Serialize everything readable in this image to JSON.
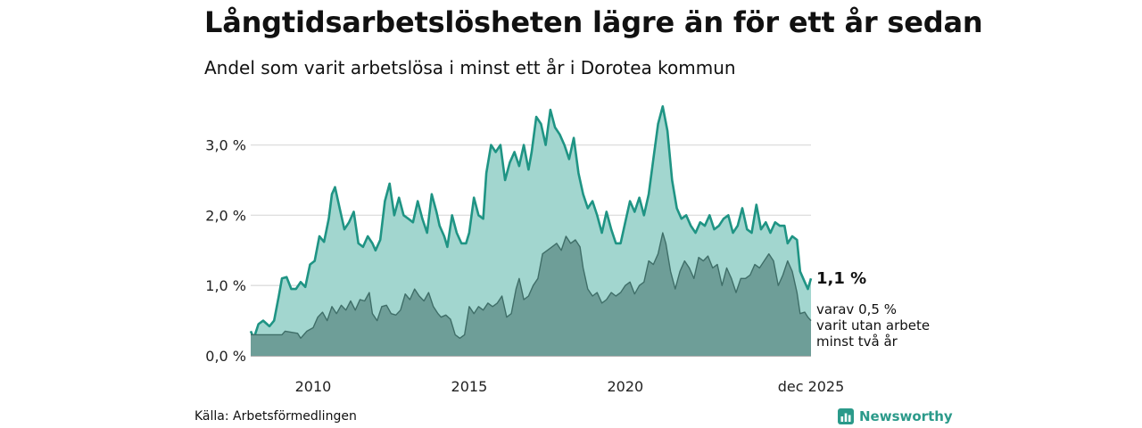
{
  "title": "Långtidsarbetslösheten lägre än för ett år sedan",
  "subtitle": "Andel som varit arbetslösa i minst ett år i Dorotea kommun",
  "source": "Källa: Arbetsförmedlingen",
  "brand": "Newsworthy",
  "end_label": "1,1 %",
  "note_lines": [
    "varav 0,5 %",
    "varit utan arbete",
    "minst två år"
  ],
  "chart_data": {
    "type": "area",
    "title": "Långtidsarbetslösheten lägre än för ett år sedan",
    "subtitle": "Andel som varit arbetslösa i minst ett år i Dorotea kommun",
    "xlabel": "",
    "ylabel": "",
    "x_range": [
      "2008-01",
      "2025-12"
    ],
    "ylim": [
      0,
      3.5
    ],
    "y_ticks": [
      0,
      1,
      2,
      3
    ],
    "y_tick_labels": [
      "0,0 %",
      "1,0 %",
      "2,0 %",
      "3,0 %"
    ],
    "x_ticks": [
      2010,
      2015,
      2020,
      2025.95
    ],
    "x_tick_labels": [
      "2010",
      "2015",
      "2020",
      "dec 2025"
    ],
    "grid": true,
    "series": [
      {
        "name": "minst ett år",
        "line_color": "#1f9484",
        "fill_color": "#a2d6cf",
        "points": [
          [
            2008.0,
            0.35
          ],
          [
            2008.1,
            0.25
          ],
          [
            2008.25,
            0.45
          ],
          [
            2008.4,
            0.5
          ],
          [
            2008.6,
            0.42
          ],
          [
            2008.75,
            0.5
          ],
          [
            2008.9,
            0.85
          ],
          [
            2009.0,
            1.1
          ],
          [
            2009.15,
            1.12
          ],
          [
            2009.3,
            0.95
          ],
          [
            2009.45,
            0.95
          ],
          [
            2009.6,
            1.05
          ],
          [
            2009.75,
            0.98
          ],
          [
            2009.9,
            1.3
          ],
          [
            2010.05,
            1.35
          ],
          [
            2010.2,
            1.7
          ],
          [
            2010.35,
            1.62
          ],
          [
            2010.5,
            1.95
          ],
          [
            2010.6,
            2.3
          ],
          [
            2010.7,
            2.4
          ],
          [
            2010.85,
            2.1
          ],
          [
            2011.0,
            1.8
          ],
          [
            2011.15,
            1.9
          ],
          [
            2011.3,
            2.05
          ],
          [
            2011.45,
            1.6
          ],
          [
            2011.6,
            1.55
          ],
          [
            2011.75,
            1.7
          ],
          [
            2011.9,
            1.6
          ],
          [
            2012.0,
            1.5
          ],
          [
            2012.15,
            1.65
          ],
          [
            2012.3,
            2.2
          ],
          [
            2012.45,
            2.45
          ],
          [
            2012.6,
            2.0
          ],
          [
            2012.75,
            2.25
          ],
          [
            2012.9,
            2.0
          ],
          [
            2013.05,
            1.95
          ],
          [
            2013.2,
            1.9
          ],
          [
            2013.35,
            2.2
          ],
          [
            2013.5,
            1.95
          ],
          [
            2013.65,
            1.75
          ],
          [
            2013.8,
            2.3
          ],
          [
            2013.95,
            2.05
          ],
          [
            2014.05,
            1.85
          ],
          [
            2014.2,
            1.7
          ],
          [
            2014.3,
            1.55
          ],
          [
            2014.45,
            2.0
          ],
          [
            2014.6,
            1.75
          ],
          [
            2014.75,
            1.6
          ],
          [
            2014.9,
            1.6
          ],
          [
            2015.0,
            1.75
          ],
          [
            2015.15,
            2.25
          ],
          [
            2015.3,
            2.0
          ],
          [
            2015.45,
            1.95
          ],
          [
            2015.55,
            2.6
          ],
          [
            2015.7,
            3.0
          ],
          [
            2015.85,
            2.9
          ],
          [
            2016.0,
            3.0
          ],
          [
            2016.15,
            2.5
          ],
          [
            2016.3,
            2.75
          ],
          [
            2016.45,
            2.9
          ],
          [
            2016.6,
            2.7
          ],
          [
            2016.75,
            3.0
          ],
          [
            2016.9,
            2.65
          ],
          [
            2017.0,
            2.9
          ],
          [
            2017.15,
            3.4
          ],
          [
            2017.3,
            3.3
          ],
          [
            2017.45,
            3.0
          ],
          [
            2017.6,
            3.5
          ],
          [
            2017.75,
            3.25
          ],
          [
            2017.9,
            3.15
          ],
          [
            2018.05,
            3.0
          ],
          [
            2018.2,
            2.8
          ],
          [
            2018.35,
            3.1
          ],
          [
            2018.5,
            2.6
          ],
          [
            2018.65,
            2.3
          ],
          [
            2018.8,
            2.1
          ],
          [
            2018.95,
            2.2
          ],
          [
            2019.1,
            2.0
          ],
          [
            2019.25,
            1.75
          ],
          [
            2019.4,
            2.05
          ],
          [
            2019.55,
            1.8
          ],
          [
            2019.7,
            1.6
          ],
          [
            2019.85,
            1.6
          ],
          [
            2020.0,
            1.9
          ],
          [
            2020.15,
            2.2
          ],
          [
            2020.3,
            2.05
          ],
          [
            2020.45,
            2.25
          ],
          [
            2020.6,
            2.0
          ],
          [
            2020.75,
            2.3
          ],
          [
            2020.9,
            2.8
          ],
          [
            2021.05,
            3.3
          ],
          [
            2021.2,
            3.55
          ],
          [
            2021.35,
            3.2
          ],
          [
            2021.5,
            2.5
          ],
          [
            2021.65,
            2.1
          ],
          [
            2021.8,
            1.95
          ],
          [
            2021.95,
            2.0
          ],
          [
            2022.1,
            1.85
          ],
          [
            2022.25,
            1.75
          ],
          [
            2022.4,
            1.9
          ],
          [
            2022.55,
            1.85
          ],
          [
            2022.7,
            2.0
          ],
          [
            2022.85,
            1.8
          ],
          [
            2023.0,
            1.85
          ],
          [
            2023.15,
            1.95
          ],
          [
            2023.3,
            2.0
          ],
          [
            2023.45,
            1.75
          ],
          [
            2023.6,
            1.85
          ],
          [
            2023.75,
            2.1
          ],
          [
            2023.9,
            1.8
          ],
          [
            2024.05,
            1.75
          ],
          [
            2024.2,
            2.15
          ],
          [
            2024.35,
            1.8
          ],
          [
            2024.5,
            1.9
          ],
          [
            2024.65,
            1.75
          ],
          [
            2024.8,
            1.9
          ],
          [
            2024.95,
            1.85
          ],
          [
            2025.1,
            1.85
          ],
          [
            2025.2,
            1.6
          ],
          [
            2025.35,
            1.7
          ],
          [
            2025.5,
            1.65
          ],
          [
            2025.6,
            1.2
          ],
          [
            2025.75,
            1.05
          ],
          [
            2025.85,
            0.95
          ],
          [
            2025.95,
            1.1
          ]
        ]
      },
      {
        "name": "varav minst två år",
        "line_color": "#3f6e68",
        "fill_color": "#6e9e98",
        "points": [
          [
            2008.0,
            0.3
          ],
          [
            2008.5,
            0.3
          ],
          [
            2009.0,
            0.3
          ],
          [
            2009.1,
            0.35
          ],
          [
            2009.5,
            0.32
          ],
          [
            2009.6,
            0.25
          ],
          [
            2009.8,
            0.35
          ],
          [
            2010.0,
            0.4
          ],
          [
            2010.15,
            0.55
          ],
          [
            2010.3,
            0.62
          ],
          [
            2010.45,
            0.5
          ],
          [
            2010.6,
            0.7
          ],
          [
            2010.75,
            0.6
          ],
          [
            2010.9,
            0.72
          ],
          [
            2011.05,
            0.65
          ],
          [
            2011.2,
            0.78
          ],
          [
            2011.35,
            0.65
          ],
          [
            2011.5,
            0.8
          ],
          [
            2011.65,
            0.78
          ],
          [
            2011.8,
            0.9
          ],
          [
            2011.9,
            0.6
          ],
          [
            2012.05,
            0.5
          ],
          [
            2012.2,
            0.7
          ],
          [
            2012.35,
            0.72
          ],
          [
            2012.5,
            0.6
          ],
          [
            2012.65,
            0.58
          ],
          [
            2012.8,
            0.65
          ],
          [
            2012.95,
            0.88
          ],
          [
            2013.1,
            0.8
          ],
          [
            2013.25,
            0.95
          ],
          [
            2013.4,
            0.85
          ],
          [
            2013.55,
            0.78
          ],
          [
            2013.7,
            0.9
          ],
          [
            2013.85,
            0.7
          ],
          [
            2014.0,
            0.6
          ],
          [
            2014.1,
            0.55
          ],
          [
            2014.25,
            0.58
          ],
          [
            2014.4,
            0.52
          ],
          [
            2014.55,
            0.3
          ],
          [
            2014.7,
            0.25
          ],
          [
            2014.85,
            0.3
          ],
          [
            2015.0,
            0.7
          ],
          [
            2015.15,
            0.6
          ],
          [
            2015.3,
            0.7
          ],
          [
            2015.45,
            0.65
          ],
          [
            2015.6,
            0.75
          ],
          [
            2015.75,
            0.7
          ],
          [
            2015.9,
            0.75
          ],
          [
            2016.05,
            0.85
          ],
          [
            2016.2,
            0.55
          ],
          [
            2016.35,
            0.6
          ],
          [
            2016.5,
            0.95
          ],
          [
            2016.6,
            1.1
          ],
          [
            2016.75,
            0.8
          ],
          [
            2016.9,
            0.85
          ],
          [
            2017.05,
            1.0
          ],
          [
            2017.2,
            1.1
          ],
          [
            2017.35,
            1.45
          ],
          [
            2017.5,
            1.5
          ],
          [
            2017.65,
            1.55
          ],
          [
            2017.8,
            1.6
          ],
          [
            2017.95,
            1.5
          ],
          [
            2018.1,
            1.7
          ],
          [
            2018.25,
            1.6
          ],
          [
            2018.4,
            1.65
          ],
          [
            2018.55,
            1.55
          ],
          [
            2018.65,
            1.25
          ],
          [
            2018.8,
            0.95
          ],
          [
            2018.95,
            0.85
          ],
          [
            2019.1,
            0.9
          ],
          [
            2019.25,
            0.75
          ],
          [
            2019.4,
            0.8
          ],
          [
            2019.55,
            0.9
          ],
          [
            2019.7,
            0.85
          ],
          [
            2019.85,
            0.9
          ],
          [
            2020.0,
            1.0
          ],
          [
            2020.15,
            1.05
          ],
          [
            2020.3,
            0.88
          ],
          [
            2020.45,
            1.0
          ],
          [
            2020.6,
            1.05
          ],
          [
            2020.75,
            1.35
          ],
          [
            2020.9,
            1.3
          ],
          [
            2021.05,
            1.45
          ],
          [
            2021.2,
            1.75
          ],
          [
            2021.3,
            1.6
          ],
          [
            2021.45,
            1.2
          ],
          [
            2021.6,
            0.95
          ],
          [
            2021.75,
            1.2
          ],
          [
            2021.9,
            1.35
          ],
          [
            2022.05,
            1.25
          ],
          [
            2022.2,
            1.1
          ],
          [
            2022.35,
            1.4
          ],
          [
            2022.5,
            1.35
          ],
          [
            2022.65,
            1.42
          ],
          [
            2022.8,
            1.25
          ],
          [
            2022.95,
            1.3
          ],
          [
            2023.1,
            1.0
          ],
          [
            2023.25,
            1.25
          ],
          [
            2023.4,
            1.1
          ],
          [
            2023.55,
            0.9
          ],
          [
            2023.7,
            1.1
          ],
          [
            2023.85,
            1.1
          ],
          [
            2024.0,
            1.15
          ],
          [
            2024.15,
            1.3
          ],
          [
            2024.3,
            1.25
          ],
          [
            2024.45,
            1.35
          ],
          [
            2024.6,
            1.45
          ],
          [
            2024.75,
            1.35
          ],
          [
            2024.9,
            1.0
          ],
          [
            2025.05,
            1.15
          ],
          [
            2025.2,
            1.35
          ],
          [
            2025.35,
            1.2
          ],
          [
            2025.5,
            0.9
          ],
          [
            2025.6,
            0.6
          ],
          [
            2025.75,
            0.62
          ],
          [
            2025.85,
            0.55
          ],
          [
            2025.95,
            0.5
          ]
        ]
      }
    ]
  }
}
